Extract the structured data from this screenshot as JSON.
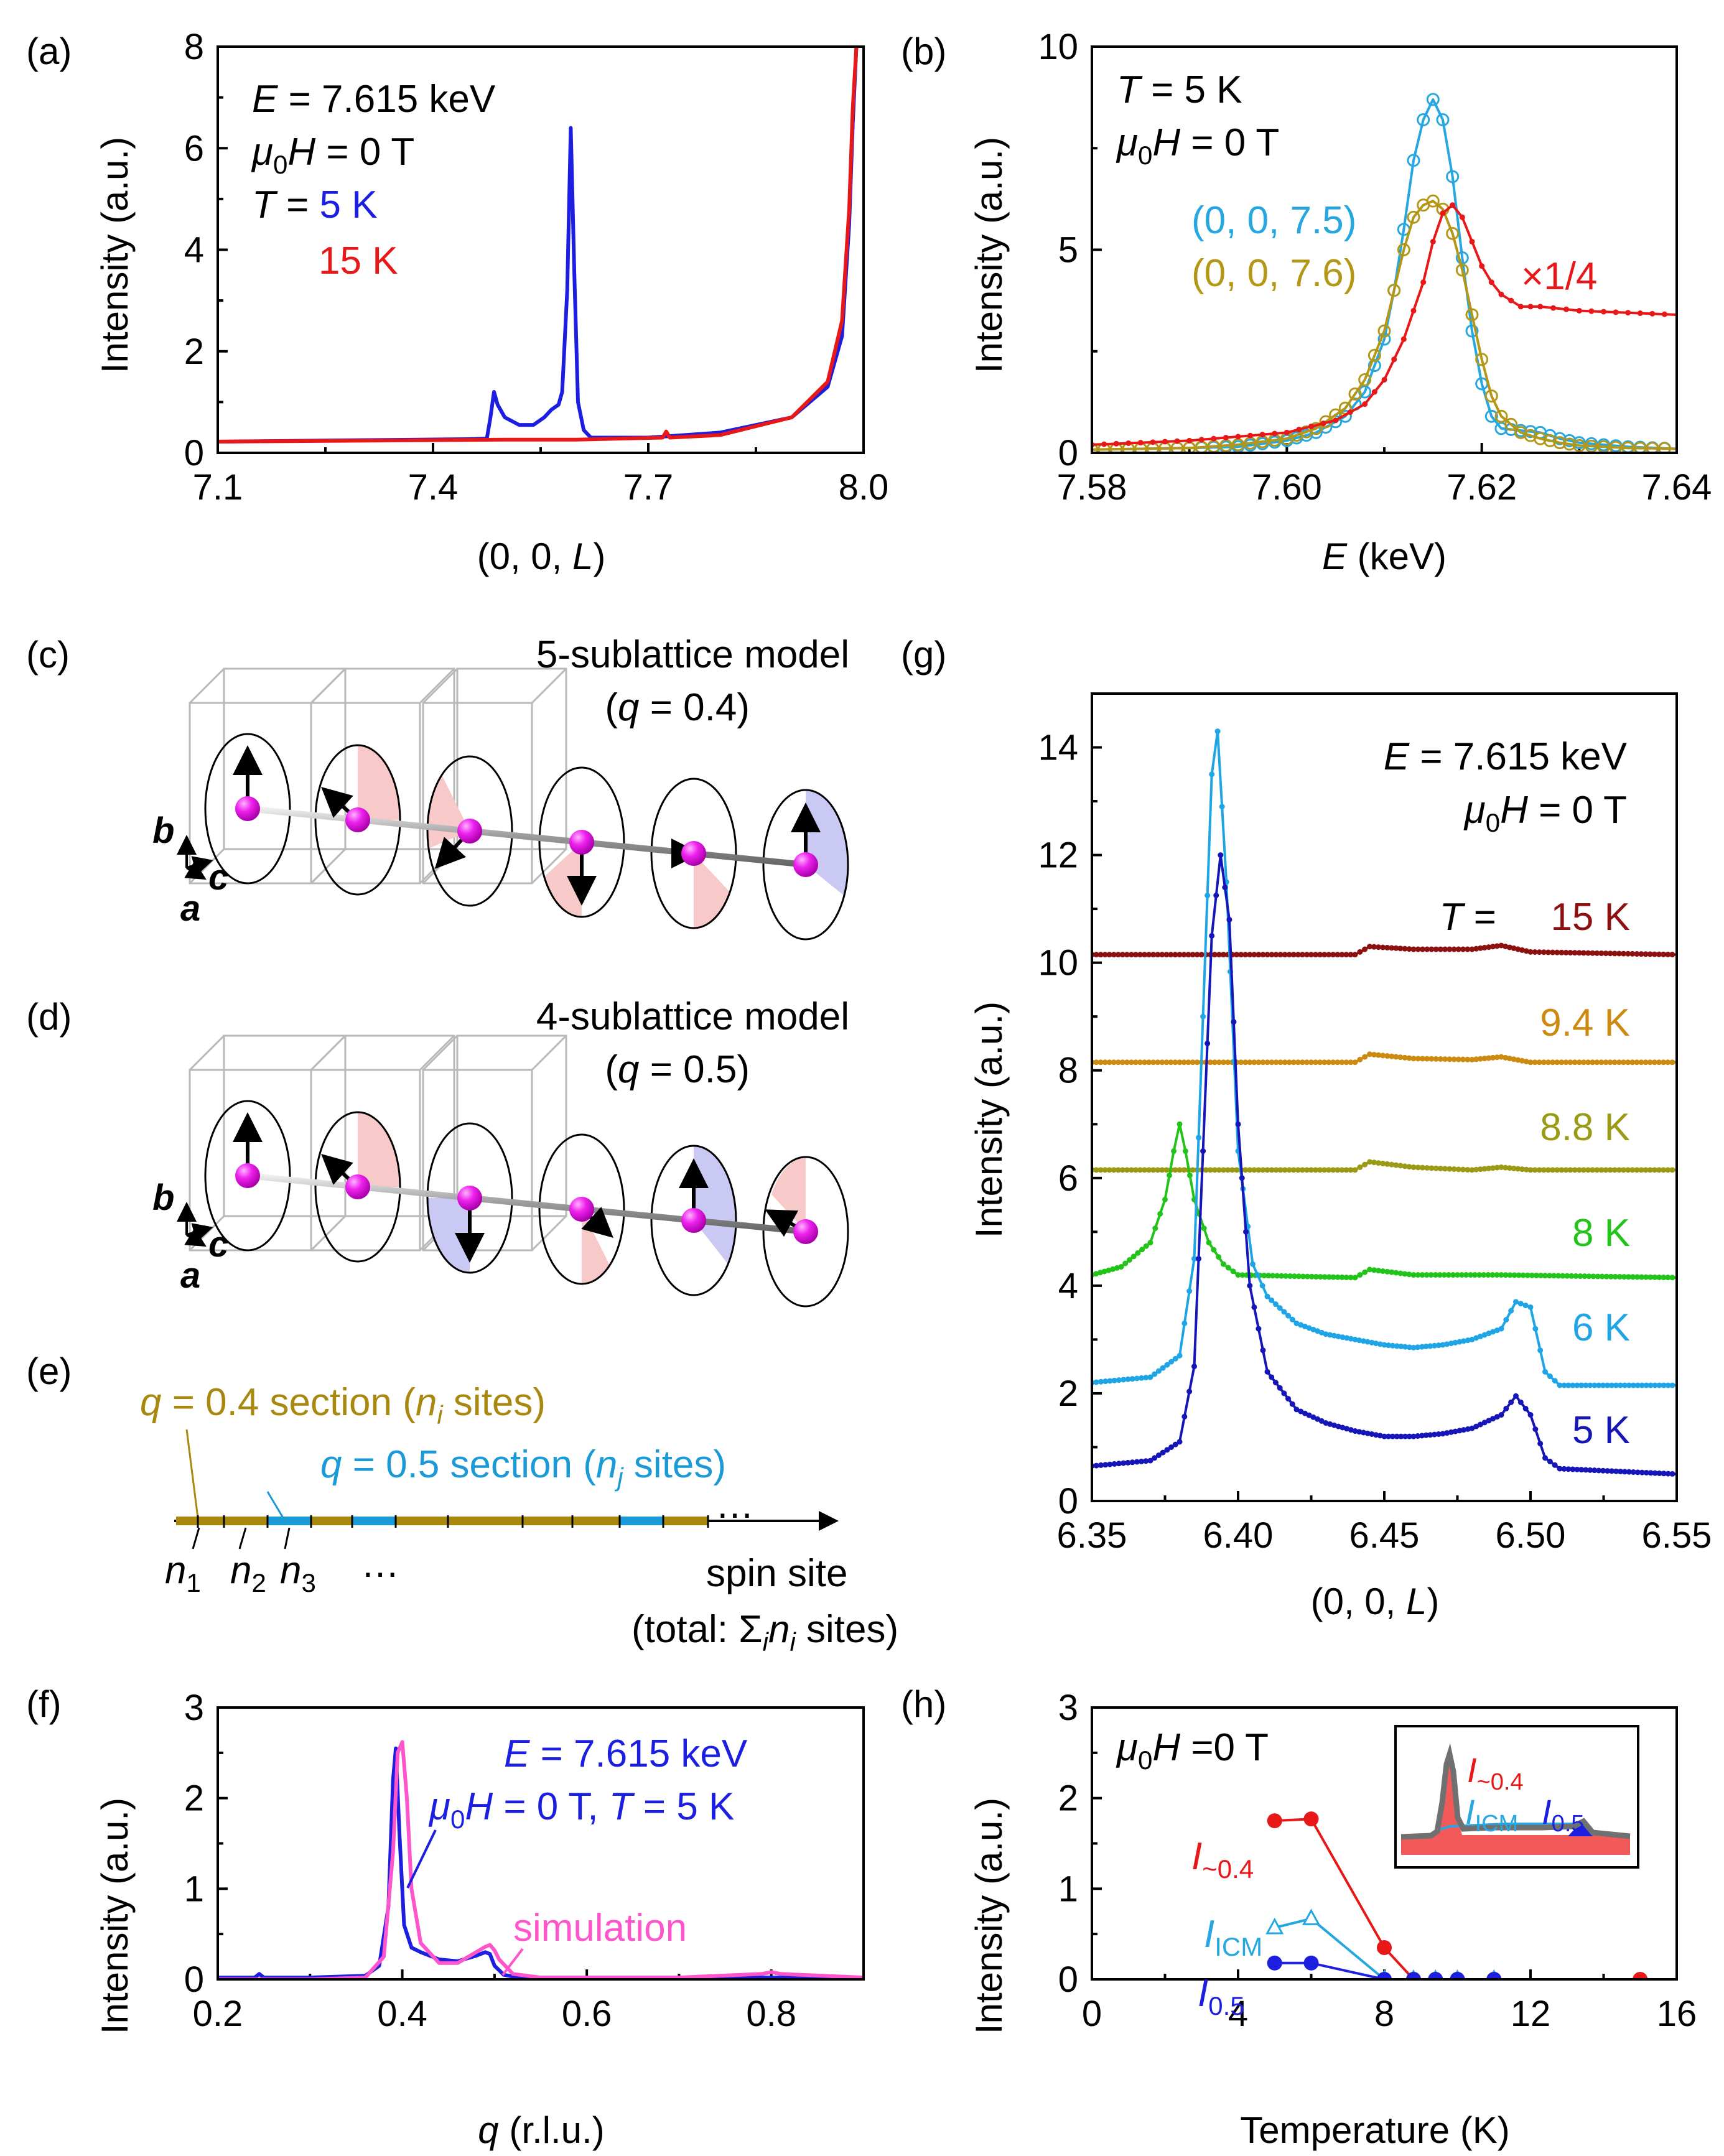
{
  "panels": {
    "a": "(a)",
    "b": "(b)",
    "c": "(c)",
    "d": "(d)",
    "e": "(e)",
    "f": "(f)",
    "g": "(g)",
    "h": "(h)"
  },
  "colors": {
    "blue": "#1c1ee0",
    "red": "#e81818",
    "cyan": "#27a7e0",
    "gold": "#b59718",
    "darkred": "#8c1010",
    "orange": "#cc8a10",
    "olive": "#9a9a14",
    "green": "#22c41a",
    "lightblue": "#1fa5e6",
    "navy": "#1515b8",
    "magenta": "#ff55cc",
    "section_gold": "#a98810",
    "section_blue": "#1b9ad6"
  },
  "panel_a": {
    "ann": {
      "E": "E",
      "E_val": " = 7.615 keV",
      "mu": "μ",
      "mu_sub": "0",
      "H": "H",
      "H_val": " = 0 T",
      "T": "T",
      "T_eq": " = ",
      "T1": "5 K",
      "T2": "15 K"
    },
    "xlabel_pre": "(0, 0, ",
    "xlabel_var": "L",
    "xlabel_post": ")",
    "ylabel": "Intensity (a.u.)"
  },
  "panel_b": {
    "ann": {
      "T": "T",
      "T_val": " = 5 K",
      "mu": "μ",
      "mu_sub": "0",
      "H": "H",
      "H_val": " = 0 T",
      "s1": "(0, 0, 7.5)",
      "s2": "(0, 0, 7.6)",
      "scale": "×1/4"
    },
    "xlabel_var": "E",
    "xlabel_post": " (keV)",
    "ylabel": "Intensity (a.u.)"
  },
  "panel_c": {
    "title": "5-sublattice model",
    "q_pre": "(",
    "q": "q",
    "q_post": " = 0.4)",
    "ax_b": "b",
    "ax_c": "c",
    "ax_a": "a"
  },
  "panel_d": {
    "title": "4-sublattice model",
    "q_pre": "(",
    "q": "q",
    "q_post": " = 0.5)",
    "ax_b": "b",
    "ax_c": "c",
    "ax_a": "a"
  },
  "panel_e": {
    "gold_label_q": "q",
    "gold_label": " = 0.4 section (",
    "gold_n": "n",
    "gold_sub": "i",
    "gold_end": " sites)",
    "blue_label_q": "q",
    "blue_label": " = 0.5 section (",
    "blue_n": "n",
    "blue_sub": "j",
    "blue_end": " sites)",
    "n": "n",
    "n1": "1",
    "n2": "2",
    "n3": "3",
    "dots": "…",
    "tail_dots": "…",
    "axis_label": "spin site",
    "total_pre": "(total: Σ",
    "total_sub_i": "i",
    "total_n": "n",
    "total_sub_i2": "i",
    "total_post": " sites)"
  },
  "panel_f": {
    "ann": {
      "E": "E",
      "E_val": " = 7.615 keV",
      "mu": "μ",
      "mu_sub": "0",
      "H": "H",
      "H_val": " = 0 T, ",
      "T": "T",
      "T_val": " = 5 K",
      "sim": "simulation"
    },
    "xlabel_var": "q",
    "xlabel_post": " (r.l.u.)",
    "ylabel": "Intensity (a.u.)"
  },
  "panel_g": {
    "ann": {
      "E": "E",
      "E_val": " = 7.615 keV",
      "mu": "μ",
      "mu_sub": "0",
      "H": "H",
      "H_val": " = 0 T",
      "T": "T",
      "T_eq": " = "
    },
    "xlabel": "(0, 0, L)",
    "xlabel_pre": "(0, 0, ",
    "xlabel_var": "L",
    "xlabel_post": ")",
    "ylabel": "Intensity (a.u.)"
  },
  "panel_h": {
    "ann": {
      "mu": "μ",
      "mu_sub": "0",
      "H": "H",
      "H_val": " =0 T",
      "I": "I",
      "s04": "~0.4",
      "sICM": "ICM",
      "s05": "0.5"
    },
    "xlabel": "Temperature (K)",
    "ylabel": "Intensity (a.u.)"
  },
  "chart_data": [
    {
      "id": "a",
      "type": "line",
      "xlim": [
        7.1,
        8.0
      ],
      "ylim": [
        0,
        8
      ],
      "xticks": [
        7.1,
        7.4,
        7.7,
        8.0
      ],
      "xtick_labels": [
        "7.1",
        "7.4",
        "7.7",
        "8.0"
      ],
      "yticks": [
        0,
        2,
        4,
        6,
        8
      ],
      "ytick_labels": [
        "0",
        "2",
        "4",
        "6",
        "8"
      ],
      "series": [
        {
          "name": "5 K",
          "color": "#1c1ee0",
          "x": [
            7.1,
            7.3,
            7.45,
            7.475,
            7.48,
            7.485,
            7.49,
            7.5,
            7.52,
            7.54,
            7.555,
            7.565,
            7.575,
            7.58,
            7.587,
            7.592,
            7.597,
            7.602,
            7.61,
            7.62,
            7.7,
            7.8,
            7.9,
            7.95,
            7.97,
            7.98,
            7.985,
            7.99
          ],
          "y": [
            0.22,
            0.25,
            0.27,
            0.28,
            0.7,
            1.2,
            0.95,
            0.7,
            0.55,
            0.55,
            0.7,
            0.85,
            0.95,
            1.2,
            3.2,
            6.4,
            3.5,
            1.0,
            0.45,
            0.3,
            0.3,
            0.4,
            0.7,
            1.3,
            2.3,
            4.5,
            6.5,
            8.0
          ]
        },
        {
          "name": "15 K",
          "color": "#e81818",
          "x": [
            7.1,
            7.3,
            7.5,
            7.6,
            7.72,
            7.725,
            7.73,
            7.8,
            7.9,
            7.95,
            7.97,
            7.98,
            7.985,
            7.99
          ],
          "y": [
            0.22,
            0.24,
            0.26,
            0.26,
            0.3,
            0.42,
            0.3,
            0.35,
            0.7,
            1.4,
            2.6,
            4.8,
            6.8,
            8.0
          ]
        }
      ]
    },
    {
      "id": "b",
      "type": "line",
      "xlim": [
        7.58,
        7.64
      ],
      "ylim": [
        0,
        10
      ],
      "xticks": [
        7.58,
        7.6,
        7.62,
        7.64
      ],
      "xtick_labels": [
        "7.58",
        "7.60",
        "7.62",
        "7.64"
      ],
      "yticks": [
        0,
        5,
        10
      ],
      "ytick_labels": [
        "0",
        "5",
        "10"
      ],
      "series": [
        {
          "name": "(0, 0, 7.5)",
          "color": "#27a7e0",
          "marker": "open-circle",
          "x": [
            7.58,
            7.585,
            7.59,
            7.595,
            7.6,
            7.603,
            7.606,
            7.608,
            7.61,
            7.611,
            7.612,
            7.613,
            7.614,
            7.615,
            7.616,
            7.617,
            7.618,
            7.619,
            7.62,
            7.621,
            7.622,
            7.624,
            7.626,
            7.628,
            7.63,
            7.635,
            7.64
          ],
          "y": [
            0.08,
            0.1,
            0.12,
            0.15,
            0.3,
            0.5,
            0.9,
            1.5,
            2.8,
            4.0,
            5.5,
            7.2,
            8.2,
            8.7,
            8.2,
            6.8,
            4.8,
            3.0,
            1.7,
            0.9,
            0.6,
            0.55,
            0.5,
            0.35,
            0.25,
            0.15,
            0.1
          ]
        },
        {
          "name": "(0, 0, 7.6)",
          "color": "#b59718",
          "marker": "open-circle",
          "x": [
            7.58,
            7.585,
            7.59,
            7.595,
            7.6,
            7.603,
            7.606,
            7.608,
            7.61,
            7.611,
            7.612,
            7.613,
            7.614,
            7.615,
            7.616,
            7.617,
            7.618,
            7.619,
            7.62,
            7.621,
            7.622,
            7.624,
            7.626,
            7.628,
            7.63,
            7.635,
            7.64
          ],
          "y": [
            0.08,
            0.1,
            0.12,
            0.2,
            0.35,
            0.6,
            1.1,
            1.8,
            3.0,
            4.0,
            5.0,
            5.8,
            6.1,
            6.2,
            6.0,
            5.4,
            4.5,
            3.4,
            2.3,
            1.4,
            0.9,
            0.5,
            0.35,
            0.25,
            0.18,
            0.12,
            0.1
          ]
        },
        {
          "name": "×1/4",
          "color": "#e81818",
          "marker": "dot",
          "x": [
            7.58,
            7.59,
            7.6,
            7.605,
            7.608,
            7.61,
            7.612,
            7.614,
            7.615,
            7.616,
            7.617,
            7.618,
            7.619,
            7.62,
            7.621,
            7.622,
            7.624,
            7.626,
            7.63,
            7.635,
            7.64
          ],
          "y": [
            0.2,
            0.3,
            0.5,
            0.8,
            1.2,
            1.8,
            2.8,
            4.2,
            5.2,
            5.9,
            6.1,
            5.8,
            5.2,
            4.6,
            4.2,
            3.9,
            3.6,
            3.6,
            3.5,
            3.45,
            3.4
          ]
        }
      ]
    },
    {
      "id": "f",
      "type": "line",
      "xlim": [
        0.2,
        0.9
      ],
      "ylim": [
        0,
        3
      ],
      "xticks": [
        0.2,
        0.4,
        0.6,
        0.8
      ],
      "xtick_labels": [
        "0.2",
        "0.4",
        "0.6",
        "0.8"
      ],
      "yticks": [
        0,
        1,
        2,
        3
      ],
      "ytick_labels": [
        "0",
        "1",
        "2",
        "3"
      ],
      "series": [
        {
          "name": "μ0H = 0 T, T = 5 K",
          "color": "#1c1ee0",
          "x": [
            0.2,
            0.24,
            0.245,
            0.25,
            0.3,
            0.36,
            0.375,
            0.385,
            0.39,
            0.393,
            0.397,
            0.402,
            0.41,
            0.42,
            0.44,
            0.46,
            0.48,
            0.49,
            0.495,
            0.5,
            0.51,
            0.52,
            0.55,
            0.6,
            0.7,
            0.8,
            0.9
          ],
          "y": [
            0.02,
            0.02,
            0.06,
            0.02,
            0.02,
            0.04,
            0.15,
            0.8,
            2.2,
            2.55,
            1.6,
            0.6,
            0.35,
            0.3,
            0.22,
            0.2,
            0.26,
            0.3,
            0.28,
            0.15,
            0.05,
            0.03,
            0.02,
            0.02,
            0.02,
            0.02,
            0.02
          ]
        },
        {
          "name": "simulation",
          "color": "#ff55cc",
          "x": [
            0.2,
            0.3,
            0.36,
            0.38,
            0.39,
            0.395,
            0.4,
            0.405,
            0.41,
            0.42,
            0.44,
            0.46,
            0.48,
            0.49,
            0.495,
            0.5,
            0.505,
            0.52,
            0.55,
            0.6,
            0.7,
            0.79,
            0.8,
            0.81,
            0.9
          ],
          "y": [
            0.0,
            0.0,
            0.02,
            0.25,
            1.4,
            2.5,
            2.62,
            2.0,
            1.0,
            0.4,
            0.18,
            0.18,
            0.3,
            0.36,
            0.38,
            0.32,
            0.22,
            0.06,
            0.02,
            0.02,
            0.02,
            0.06,
            0.08,
            0.06,
            0.02
          ]
        }
      ]
    },
    {
      "id": "g",
      "type": "line",
      "xlim": [
        6.35,
        6.55
      ],
      "ylim": [
        0,
        15
      ],
      "xticks": [
        6.35,
        6.4,
        6.45,
        6.5,
        6.55
      ],
      "xtick_labels": [
        "6.35",
        "6.40",
        "6.45",
        "6.50",
        "6.55"
      ],
      "yticks": [
        0,
        2,
        4,
        6,
        8,
        10,
        12,
        14
      ],
      "ytick_labels": [
        "0",
        "2",
        "4",
        "6",
        "8",
        "10",
        "12",
        "14"
      ],
      "series": [
        {
          "name": "15 K",
          "color": "#8c1010",
          "x": [
            6.35,
            6.44,
            6.445,
            6.46,
            6.48,
            6.49,
            6.5,
            6.55
          ],
          "y": [
            10.15,
            10.15,
            10.3,
            10.25,
            10.25,
            10.32,
            10.2,
            10.15
          ]
        },
        {
          "name": "9.4 K",
          "color": "#cc8a10",
          "x": [
            6.35,
            6.44,
            6.445,
            6.46,
            6.48,
            6.49,
            6.5,
            6.55
          ],
          "y": [
            8.15,
            8.15,
            8.3,
            8.22,
            8.2,
            8.25,
            8.15,
            8.15
          ]
        },
        {
          "name": "8.8 K",
          "color": "#9a9a14",
          "x": [
            6.35,
            6.44,
            6.445,
            6.46,
            6.48,
            6.49,
            6.5,
            6.55
          ],
          "y": [
            6.15,
            6.15,
            6.3,
            6.2,
            6.15,
            6.2,
            6.15,
            6.15
          ]
        },
        {
          "name": "8 K",
          "color": "#22c41a",
          "x": [
            6.35,
            6.36,
            6.37,
            6.375,
            6.378,
            6.38,
            6.382,
            6.385,
            6.39,
            6.395,
            6.4,
            6.44,
            6.445,
            6.46,
            6.49,
            6.55
          ],
          "y": [
            4.2,
            4.35,
            4.8,
            5.6,
            6.5,
            7.0,
            6.5,
            5.6,
            4.8,
            4.4,
            4.2,
            4.15,
            4.3,
            4.2,
            4.2,
            4.15
          ]
        },
        {
          "name": "6 K",
          "color": "#1fa5e6",
          "x": [
            6.35,
            6.37,
            6.38,
            6.385,
            6.388,
            6.391,
            6.393,
            6.396,
            6.4,
            6.405,
            6.41,
            6.42,
            6.43,
            6.44,
            6.45,
            6.46,
            6.47,
            6.48,
            6.49,
            6.495,
            6.5,
            6.505,
            6.51,
            6.55
          ],
          "y": [
            2.2,
            2.3,
            2.7,
            4.5,
            9.0,
            13.5,
            14.3,
            11.5,
            6.5,
            4.4,
            3.8,
            3.3,
            3.1,
            3.0,
            2.9,
            2.85,
            2.9,
            3.0,
            3.2,
            3.7,
            3.6,
            2.4,
            2.15,
            2.15
          ]
        },
        {
          "name": "5 K",
          "color": "#1515b8",
          "x": [
            6.35,
            6.37,
            6.38,
            6.385,
            6.388,
            6.391,
            6.394,
            6.397,
            6.4,
            6.404,
            6.41,
            6.42,
            6.43,
            6.44,
            6.45,
            6.46,
            6.47,
            6.48,
            6.49,
            6.495,
            6.5,
            6.505,
            6.51,
            6.55
          ],
          "y": [
            0.65,
            0.75,
            1.1,
            2.5,
            6.5,
            10.5,
            12.0,
            10.8,
            7.0,
            4.0,
            2.4,
            1.7,
            1.45,
            1.3,
            1.2,
            1.2,
            1.25,
            1.35,
            1.6,
            1.95,
            1.6,
            0.8,
            0.6,
            0.5
          ]
        }
      ]
    },
    {
      "id": "h",
      "type": "line",
      "xlim": [
        0,
        16
      ],
      "ylim": [
        0,
        3
      ],
      "xticks": [
        0,
        4,
        8,
        12,
        16
      ],
      "xtick_labels": [
        "0",
        "4",
        "8",
        "12",
        "16"
      ],
      "yticks": [
        0,
        1,
        2,
        3
      ],
      "ytick_labels": [
        "0",
        "1",
        "2",
        "3"
      ],
      "series": [
        {
          "name": "I~0.4",
          "color": "#e81818",
          "marker": "filled-circle",
          "x": [
            5,
            6,
            8,
            8.8,
            9.4,
            10,
            11,
            15
          ],
          "y": [
            1.75,
            1.77,
            0.35,
            0,
            0,
            0,
            0,
            0
          ]
        },
        {
          "name": "IICM",
          "color": "#27a7e0",
          "marker": "open-triangle",
          "x": [
            5,
            6,
            8,
            8.8,
            9.4,
            10,
            11
          ],
          "y": [
            0.57,
            0.67,
            0,
            0,
            0,
            0,
            0
          ]
        },
        {
          "name": "I0.5",
          "color": "#1c1ee0",
          "marker": "filled-circle",
          "x": [
            5,
            6,
            8,
            8.8,
            9.4,
            10,
            11
          ],
          "y": [
            0.18,
            0.18,
            0,
            0,
            0,
            0,
            0
          ]
        }
      ]
    }
  ]
}
